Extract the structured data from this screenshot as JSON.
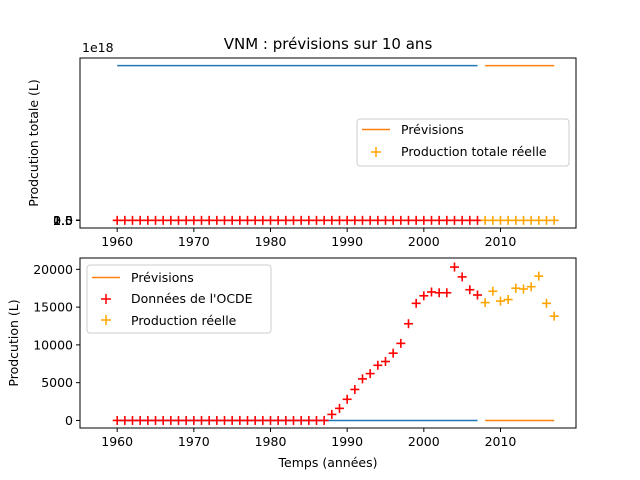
{
  "figure": {
    "title": "VNM : prévisions sur 10 ans",
    "xlabel": "Temps (années)"
  },
  "colors": {
    "flat_line": "#1f77b4",
    "forecast": "#ff7f0e",
    "oecd_data": "#ff0000",
    "real_production": "#ffa500"
  },
  "chart_data": [
    {
      "type": "line",
      "panel": "top",
      "ylabel": "Prodcution totale (L)",
      "offset_text": "1e18",
      "xlim": [
        1955.15,
        2019.85
      ],
      "ylim": [
        -1.3e+17,
        2.76e+18
      ],
      "xticks": [
        1960,
        1970,
        1980,
        1990,
        2000,
        2010
      ],
      "yticks": [
        0.0,
        0.5,
        1.0,
        1.5,
        2.0,
        2.5
      ],
      "ytick_labels": [
        "0.0",
        "0.5",
        "1.0",
        "1.5",
        "2.0",
        "2.5"
      ],
      "lines": [
        {
          "x": [
            1960,
            2007
          ],
          "y": [
            2.63e+18,
            2.63e+18
          ],
          "color_key": "flat_line"
        },
        {
          "x": [
            2008,
            2017
          ],
          "y": [
            2.63e+18,
            2.63e+18
          ],
          "color_key": "forecast",
          "legend": "Prévisions"
        }
      ],
      "markers": [
        {
          "x_start": 1960,
          "x_end": 2007,
          "value": 0,
          "marker": "+",
          "color_key": "oecd_data"
        },
        {
          "x_start": 2008,
          "x_end": 2017,
          "value": 0,
          "marker": "+",
          "color_key": "real_production",
          "legend": "Production totale réelle"
        }
      ],
      "legend": [
        "Prévisions",
        "Production totale réelle"
      ],
      "legend_loc": "center-right"
    },
    {
      "type": "scatter",
      "panel": "bottom",
      "ylabel": "Prodcution (L)",
      "xlim": [
        1955.15,
        2019.85
      ],
      "ylim": [
        -1000,
        21500
      ],
      "xticks": [
        1960,
        1970,
        1980,
        1990,
        2000,
        2010
      ],
      "yticks": [
        0,
        5000,
        10000,
        15000,
        20000
      ],
      "ytick_labels": [
        "0",
        "5000",
        "10000",
        "15000",
        "20000"
      ],
      "lines": [
        {
          "x": [
            1960,
            2007
          ],
          "y": [
            0,
            0
          ],
          "color_key": "flat_line"
        },
        {
          "x": [
            2008,
            2017
          ],
          "y": [
            0,
            0
          ],
          "color_key": "forecast",
          "legend": "Prévisions"
        }
      ],
      "series": [
        {
          "name": "Données de l'OCDE",
          "color_key": "oecd_data",
          "x": [
            1960,
            1961,
            1962,
            1963,
            1964,
            1965,
            1966,
            1967,
            1968,
            1969,
            1970,
            1971,
            1972,
            1973,
            1974,
            1975,
            1976,
            1977,
            1978,
            1979,
            1980,
            1981,
            1982,
            1983,
            1984,
            1985,
            1986,
            1987,
            1988,
            1989,
            1990,
            1991,
            1992,
            1993,
            1994,
            1995,
            1996,
            1997,
            1998,
            1999,
            2000,
            2001,
            2002,
            2003,
            2004,
            2005,
            2006,
            2007
          ],
          "values": [
            0,
            0,
            0,
            0,
            0,
            0,
            0,
            0,
            0,
            0,
            0,
            0,
            0,
            0,
            0,
            0,
            0,
            0,
            0,
            0,
            0,
            0,
            0,
            0,
            0,
            0,
            0,
            0,
            800,
            1600,
            2800,
            4100,
            5500,
            6200,
            7300,
            7800,
            8900,
            10200,
            12800,
            15500,
            16500,
            17000,
            16900,
            16900,
            20300,
            19000,
            17300,
            16600
          ]
        },
        {
          "name": "Production réelle",
          "color_key": "real_production",
          "x": [
            2008,
            2009,
            2010,
            2011,
            2012,
            2013,
            2014,
            2015,
            2016,
            2017
          ],
          "values": [
            15600,
            17100,
            15800,
            16000,
            17500,
            17400,
            17700,
            19100,
            15500,
            13800
          ]
        }
      ],
      "legend": [
        "Prévisions",
        "Données de l'OCDE",
        "Production réelle"
      ],
      "legend_loc": "upper-left"
    }
  ]
}
